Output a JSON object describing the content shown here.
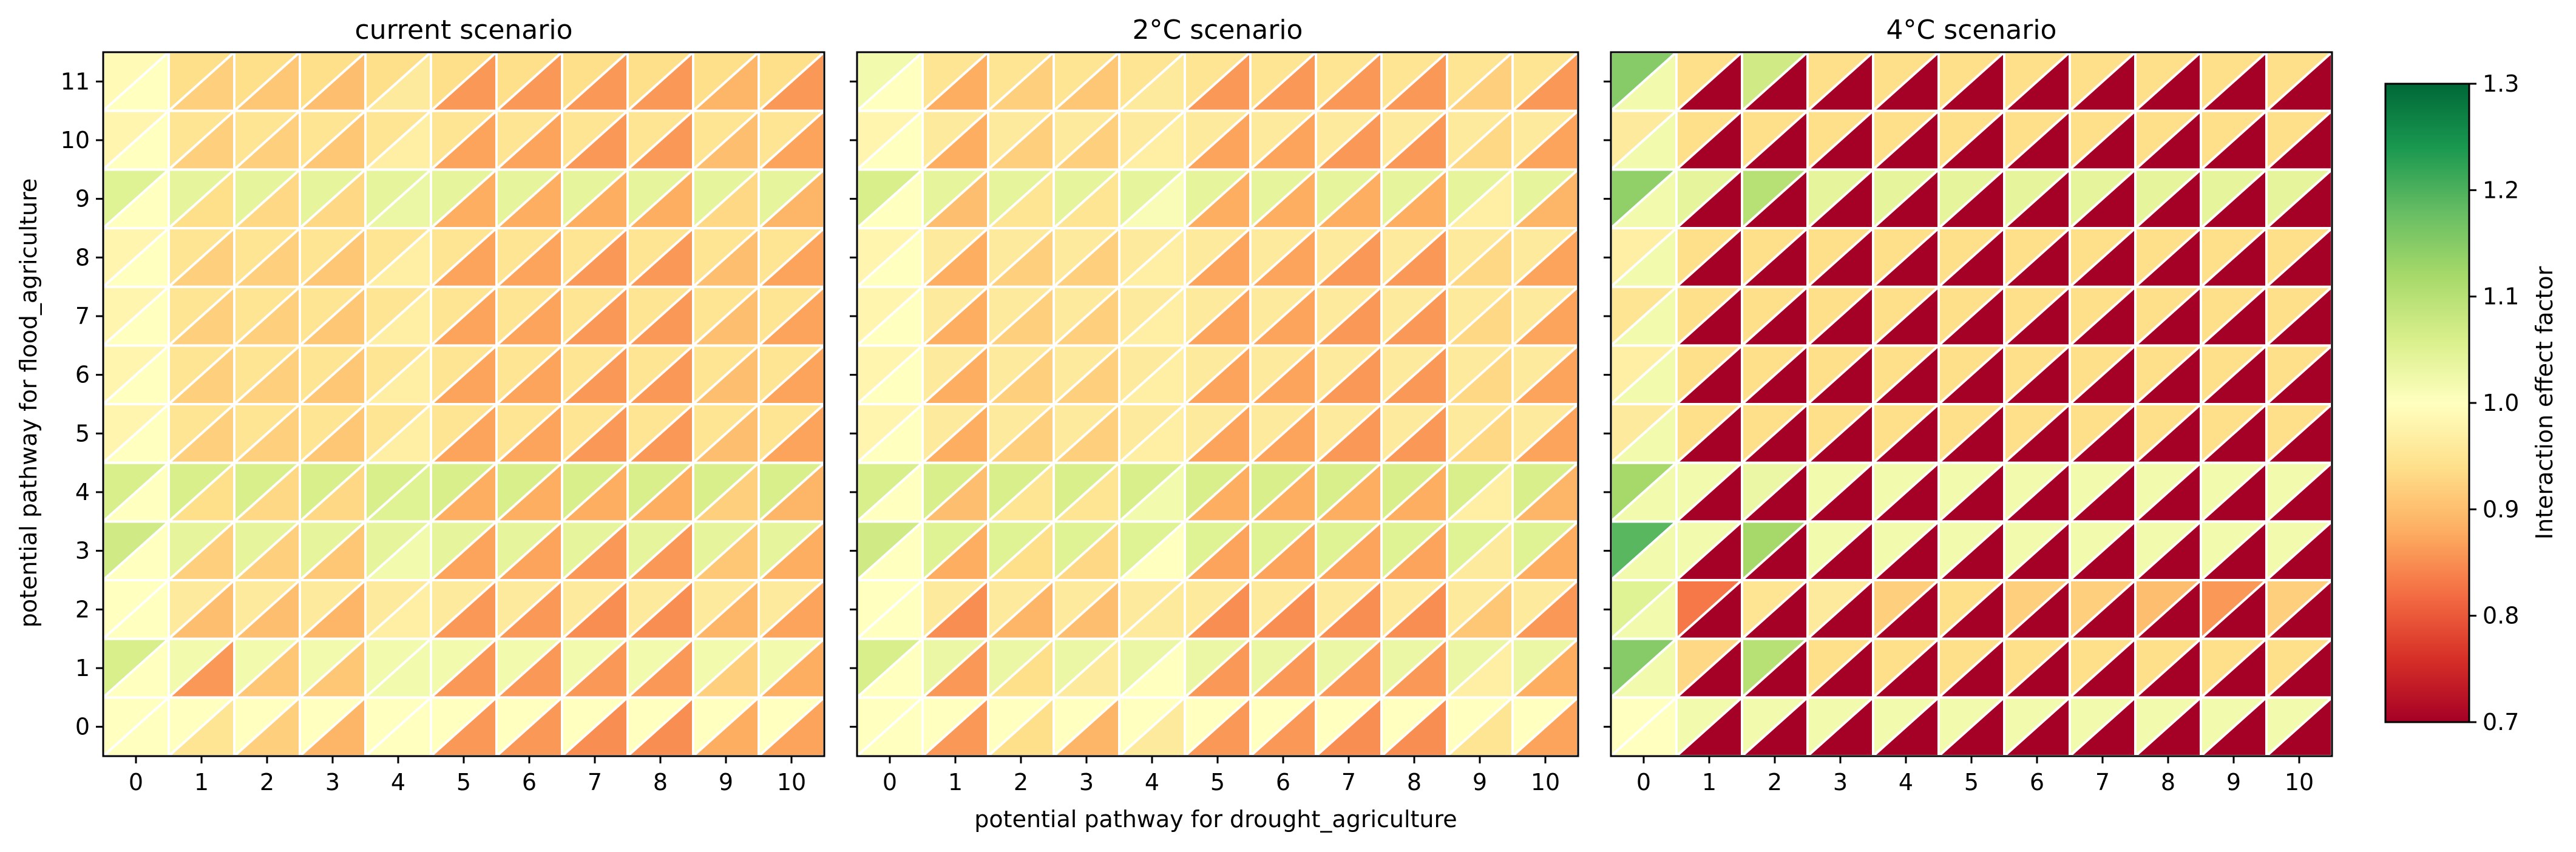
{
  "figure": {
    "xlabel": "potential pathway for drought_agriculture",
    "ylabel": "potential pathway for flood_agriculture",
    "colorbar_label": "Interaction effect factor",
    "colorbar_ticks": [
      "0.7",
      "0.8",
      "0.9",
      "1.0",
      "1.1",
      "1.2",
      "1.3"
    ],
    "x_ticks": [
      "0",
      "1",
      "2",
      "3",
      "4",
      "5",
      "6",
      "7",
      "8",
      "9",
      "10"
    ],
    "y_ticks": [
      "0",
      "1",
      "2",
      "3",
      "4",
      "5",
      "6",
      "7",
      "8",
      "9",
      "10",
      "11"
    ]
  },
  "chart_data": {
    "type": "heatmap",
    "cell_style": "split-diagonal: upper-left triangle = value for flood_agriculture, lower-right triangle = value for drought_agriculture",
    "x": [
      0,
      1,
      2,
      3,
      4,
      5,
      6,
      7,
      8,
      9,
      10
    ],
    "y": [
      0,
      1,
      2,
      3,
      4,
      5,
      6,
      7,
      8,
      9,
      10,
      11
    ],
    "colormap": "RdYlGn",
    "vmin": 0.7,
    "vmax": 1.3,
    "panels": [
      {
        "title": "current scenario",
        "upper": [
          [
            1.0,
            1.0,
            1.0,
            1.0,
            1.0,
            1.0,
            1.0,
            1.0,
            1.0,
            1.0,
            1.0
          ],
          [
            1.06,
            1.02,
            1.02,
            1.02,
            1.02,
            1.02,
            1.02,
            1.02,
            1.02,
            1.02,
            1.02
          ],
          [
            1.0,
            0.96,
            0.96,
            0.96,
            0.96,
            0.96,
            0.96,
            0.96,
            0.96,
            0.96,
            0.96
          ],
          [
            1.07,
            1.04,
            1.04,
            1.04,
            1.04,
            1.04,
            1.04,
            1.04,
            1.04,
            1.04,
            1.04
          ],
          [
            1.06,
            1.06,
            1.06,
            1.06,
            1.06,
            1.06,
            1.06,
            1.06,
            1.06,
            1.06,
            1.06
          ],
          [
            0.98,
            0.95,
            0.95,
            0.95,
            0.95,
            0.95,
            0.95,
            0.95,
            0.95,
            0.95,
            0.95
          ],
          [
            0.98,
            0.95,
            0.95,
            0.95,
            0.95,
            0.95,
            0.95,
            0.95,
            0.95,
            0.95,
            0.95
          ],
          [
            0.98,
            0.95,
            0.95,
            0.95,
            0.95,
            0.95,
            0.95,
            0.95,
            0.95,
            0.95,
            0.95
          ],
          [
            0.98,
            0.95,
            0.95,
            0.95,
            0.95,
            0.95,
            0.95,
            0.95,
            0.95,
            0.95,
            0.95
          ],
          [
            1.05,
            1.04,
            1.04,
            1.04,
            1.04,
            1.04,
            1.04,
            1.04,
            1.04,
            1.04,
            1.04
          ],
          [
            0.98,
            0.95,
            0.95,
            0.95,
            0.95,
            0.95,
            0.95,
            0.95,
            0.95,
            0.95,
            0.95
          ],
          [
            0.99,
            0.94,
            0.94,
            0.94,
            0.94,
            0.94,
            0.94,
            0.94,
            0.94,
            0.94,
            0.94
          ]
        ],
        "lower": [
          [
            1.0,
            0.95,
            0.92,
            0.89,
            1.0,
            0.86,
            0.86,
            0.85,
            0.85,
            0.88,
            0.87
          ],
          [
            1.0,
            0.86,
            0.91,
            0.91,
            1.02,
            0.86,
            0.86,
            0.86,
            0.86,
            0.92,
            0.88
          ],
          [
            1.0,
            0.9,
            0.9,
            0.89,
            0.97,
            0.86,
            0.86,
            0.85,
            0.85,
            0.89,
            0.87
          ],
          [
            1.0,
            0.92,
            0.92,
            0.91,
            1.02,
            0.87,
            0.87,
            0.86,
            0.86,
            0.91,
            0.88
          ],
          [
            1.0,
            0.94,
            0.93,
            0.93,
            1.05,
            0.88,
            0.88,
            0.88,
            0.88,
            0.92,
            0.89
          ],
          [
            1.0,
            0.92,
            0.92,
            0.91,
            0.97,
            0.87,
            0.87,
            0.86,
            0.86,
            0.9,
            0.87
          ],
          [
            1.0,
            0.92,
            0.92,
            0.91,
            0.97,
            0.87,
            0.87,
            0.86,
            0.86,
            0.9,
            0.87
          ],
          [
            1.0,
            0.92,
            0.92,
            0.91,
            0.97,
            0.87,
            0.87,
            0.86,
            0.86,
            0.9,
            0.87
          ],
          [
            1.0,
            0.92,
            0.92,
            0.91,
            0.97,
            0.87,
            0.87,
            0.86,
            0.86,
            0.9,
            0.87
          ],
          [
            1.0,
            0.94,
            0.93,
            0.93,
            1.03,
            0.88,
            0.88,
            0.88,
            0.88,
            0.93,
            0.89
          ],
          [
            1.0,
            0.92,
            0.92,
            0.91,
            0.97,
            0.87,
            0.87,
            0.86,
            0.86,
            0.9,
            0.87
          ],
          [
            1.0,
            0.92,
            0.91,
            0.9,
            0.96,
            0.86,
            0.86,
            0.86,
            0.86,
            0.89,
            0.86
          ]
        ]
      },
      {
        "title": "2°C scenario",
        "upper": [
          [
            1.0,
            1.0,
            1.0,
            1.0,
            1.0,
            1.0,
            1.0,
            1.0,
            1.0,
            1.0,
            1.0
          ],
          [
            1.06,
            1.03,
            1.03,
            1.03,
            1.03,
            1.03,
            1.03,
            1.03,
            1.03,
            1.03,
            1.03
          ],
          [
            1.0,
            0.96,
            0.96,
            0.96,
            0.96,
            0.96,
            0.96,
            0.96,
            0.96,
            0.96,
            0.96
          ],
          [
            1.07,
            1.05,
            1.05,
            1.05,
            1.05,
            1.05,
            1.05,
            1.05,
            1.05,
            1.05,
            1.05
          ],
          [
            1.06,
            1.06,
            1.06,
            1.06,
            1.06,
            1.06,
            1.06,
            1.06,
            1.06,
            1.06,
            1.06
          ],
          [
            0.98,
            0.96,
            0.96,
            0.96,
            0.96,
            0.96,
            0.96,
            0.96,
            0.96,
            0.96,
            0.96
          ],
          [
            0.98,
            0.96,
            0.96,
            0.96,
            0.96,
            0.96,
            0.96,
            0.96,
            0.96,
            0.96,
            0.96
          ],
          [
            0.98,
            0.96,
            0.96,
            0.96,
            0.96,
            0.96,
            0.96,
            0.96,
            0.96,
            0.96,
            0.96
          ],
          [
            0.98,
            0.96,
            0.96,
            0.96,
            0.96,
            0.96,
            0.96,
            0.96,
            0.96,
            0.96,
            0.96
          ],
          [
            1.06,
            1.04,
            1.04,
            1.04,
            1.04,
            1.04,
            1.04,
            1.04,
            1.04,
            1.04,
            1.04
          ],
          [
            0.98,
            0.96,
            0.96,
            0.96,
            0.96,
            0.96,
            0.96,
            0.96,
            0.96,
            0.96,
            0.96
          ],
          [
            1.02,
            0.95,
            0.95,
            0.95,
            0.95,
            0.95,
            0.95,
            0.95,
            0.95,
            0.95,
            0.95
          ]
        ],
        "lower": [
          [
            1.0,
            0.86,
            0.94,
            0.89,
            0.96,
            0.86,
            0.86,
            0.85,
            0.85,
            0.95,
            0.87
          ],
          [
            1.0,
            0.86,
            0.94,
            0.96,
            1.0,
            0.86,
            0.86,
            0.86,
            0.86,
            0.97,
            0.88
          ],
          [
            1.0,
            0.85,
            0.89,
            0.9,
            0.96,
            0.85,
            0.85,
            0.85,
            0.85,
            0.91,
            0.86
          ],
          [
            1.0,
            0.88,
            0.94,
            0.93,
            1.0,
            0.87,
            0.87,
            0.87,
            0.87,
            0.96,
            0.88
          ],
          [
            1.0,
            0.9,
            0.95,
            0.95,
            1.02,
            0.88,
            0.88,
            0.88,
            0.88,
            0.97,
            0.89
          ],
          [
            1.0,
            0.88,
            0.92,
            0.92,
            0.97,
            0.87,
            0.87,
            0.86,
            0.86,
            0.93,
            0.87
          ],
          [
            1.0,
            0.88,
            0.92,
            0.92,
            0.97,
            0.87,
            0.87,
            0.86,
            0.86,
            0.93,
            0.87
          ],
          [
            1.0,
            0.88,
            0.92,
            0.92,
            0.97,
            0.87,
            0.87,
            0.86,
            0.86,
            0.93,
            0.87
          ],
          [
            1.0,
            0.88,
            0.92,
            0.92,
            0.97,
            0.87,
            0.87,
            0.86,
            0.86,
            0.93,
            0.87
          ],
          [
            1.0,
            0.9,
            0.95,
            0.95,
            1.01,
            0.88,
            0.88,
            0.88,
            0.88,
            0.97,
            0.89
          ],
          [
            1.0,
            0.88,
            0.92,
            0.92,
            0.97,
            0.87,
            0.87,
            0.86,
            0.86,
            0.93,
            0.87
          ],
          [
            1.0,
            0.88,
            0.92,
            0.91,
            0.96,
            0.86,
            0.86,
            0.86,
            0.86,
            0.92,
            0.86
          ]
        ]
      },
      {
        "title": "4°C scenario",
        "upper": [
          [
            1.0,
            1.02,
            1.02,
            1.02,
            1.02,
            1.02,
            1.02,
            1.02,
            1.02,
            1.02,
            1.02
          ],
          [
            1.15,
            0.93,
            1.1,
            0.94,
            0.94,
            0.94,
            0.94,
            0.94,
            0.94,
            0.94,
            0.94
          ],
          [
            1.05,
            0.83,
            0.95,
            0.96,
            0.92,
            0.94,
            0.92,
            0.92,
            0.9,
            0.86,
            0.92
          ],
          [
            1.19,
            1.02,
            1.12,
            1.02,
            1.02,
            1.02,
            1.02,
            1.02,
            1.02,
            1.02,
            1.02
          ],
          [
            1.12,
            1.02,
            1.03,
            1.02,
            1.02,
            1.02,
            1.02,
            1.02,
            1.02,
            1.02,
            1.02
          ],
          [
            0.96,
            0.94,
            0.94,
            0.94,
            0.94,
            0.94,
            0.94,
            0.94,
            0.94,
            0.94,
            0.94
          ],
          [
            0.97,
            0.94,
            0.94,
            0.94,
            0.94,
            0.94,
            0.94,
            0.94,
            0.94,
            0.94,
            0.94
          ],
          [
            0.95,
            0.94,
            0.94,
            0.94,
            0.94,
            0.94,
            0.94,
            0.94,
            0.94,
            0.94,
            0.94
          ],
          [
            0.97,
            0.94,
            0.94,
            0.94,
            0.94,
            0.94,
            0.94,
            0.94,
            0.94,
            0.94,
            0.94
          ],
          [
            1.14,
            1.04,
            1.1,
            1.04,
            1.04,
            1.04,
            1.04,
            1.04,
            1.04,
            1.04,
            1.04
          ],
          [
            0.96,
            0.94,
            0.94,
            0.94,
            0.94,
            0.94,
            0.94,
            0.94,
            0.94,
            0.94,
            0.94
          ],
          [
            1.15,
            0.94,
            1.07,
            0.94,
            0.94,
            0.94,
            0.94,
            0.94,
            0.94,
            0.94,
            0.94
          ]
        ],
        "lower": [
          [
            1.0,
            0.7,
            0.7,
            0.7,
            0.7,
            0.7,
            0.7,
            0.7,
            0.7,
            0.7,
            0.7
          ],
          [
            1.02,
            0.7,
            0.7,
            0.7,
            0.7,
            0.7,
            0.7,
            0.7,
            0.7,
            0.7,
            0.7
          ],
          [
            1.02,
            0.7,
            0.7,
            0.7,
            0.7,
            0.7,
            0.7,
            0.7,
            0.7,
            0.7,
            0.7
          ],
          [
            1.02,
            0.7,
            0.7,
            0.7,
            0.7,
            0.7,
            0.7,
            0.7,
            0.7,
            0.7,
            0.7
          ],
          [
            1.02,
            0.7,
            0.7,
            0.7,
            0.7,
            0.7,
            0.7,
            0.7,
            0.7,
            0.7,
            0.7
          ],
          [
            1.02,
            0.7,
            0.7,
            0.7,
            0.7,
            0.7,
            0.7,
            0.7,
            0.7,
            0.7,
            0.7
          ],
          [
            1.02,
            0.7,
            0.7,
            0.7,
            0.7,
            0.7,
            0.7,
            0.7,
            0.7,
            0.7,
            0.7
          ],
          [
            1.02,
            0.7,
            0.7,
            0.7,
            0.7,
            0.7,
            0.7,
            0.7,
            0.7,
            0.7,
            0.7
          ],
          [
            1.02,
            0.7,
            0.7,
            0.7,
            0.7,
            0.7,
            0.7,
            0.7,
            0.7,
            0.7,
            0.7
          ],
          [
            1.02,
            0.7,
            0.7,
            0.7,
            0.7,
            0.7,
            0.7,
            0.7,
            0.7,
            0.7,
            0.7
          ],
          [
            1.02,
            0.7,
            0.7,
            0.7,
            0.7,
            0.7,
            0.7,
            0.7,
            0.7,
            0.7,
            0.7
          ],
          [
            1.02,
            0.7,
            0.7,
            0.7,
            0.7,
            0.7,
            0.7,
            0.7,
            0.7,
            0.7,
            0.7
          ]
        ]
      }
    ]
  }
}
